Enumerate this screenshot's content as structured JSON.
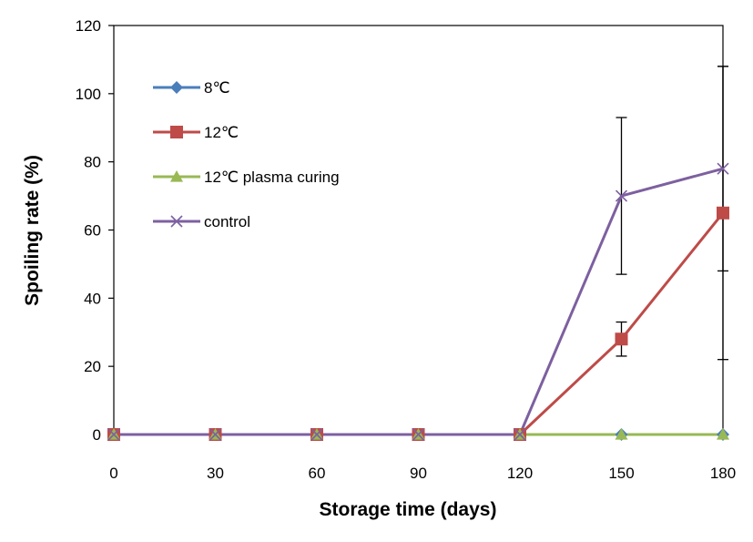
{
  "chart_data": {
    "type": "line",
    "title": "",
    "xlabel": "Storage time (days)",
    "ylabel": "Spoiling rate (%)",
    "x": [
      0,
      30,
      60,
      90,
      120,
      150,
      180
    ],
    "xlim": [
      0,
      180
    ],
    "ylim": [
      0,
      120
    ],
    "xticks": [
      "0",
      "30",
      "60",
      "90",
      "120",
      "150",
      "180"
    ],
    "yticks": [
      "0",
      "20",
      "40",
      "60",
      "80",
      "100",
      "120"
    ],
    "grid": false,
    "legend_position": "top-left",
    "series": [
      {
        "name": "8℃",
        "color": "#4a7ebb",
        "marker": "diamond",
        "values": [
          0,
          0,
          0,
          0,
          0,
          0,
          0
        ],
        "error": [
          0,
          0,
          0,
          0,
          0,
          0,
          0
        ]
      },
      {
        "name": "12℃",
        "color": "#be4b48",
        "marker": "square",
        "values": [
          0,
          0,
          0,
          0,
          0,
          28,
          65
        ],
        "error": [
          0,
          0,
          0,
          0,
          0,
          5,
          43
        ]
      },
      {
        "name": "12℃ plasma curing",
        "color": "#98b954",
        "marker": "triangle",
        "values": [
          0,
          0,
          0,
          0,
          0,
          0,
          0
        ],
        "error": [
          0,
          0,
          0,
          0,
          0,
          0,
          0
        ]
      },
      {
        "name": "control",
        "color": "#7d60a0",
        "marker": "x",
        "values": [
          0,
          0,
          0,
          0,
          0,
          70,
          78
        ],
        "error": [
          0,
          0,
          0,
          0,
          0,
          23,
          30
        ]
      }
    ]
  }
}
